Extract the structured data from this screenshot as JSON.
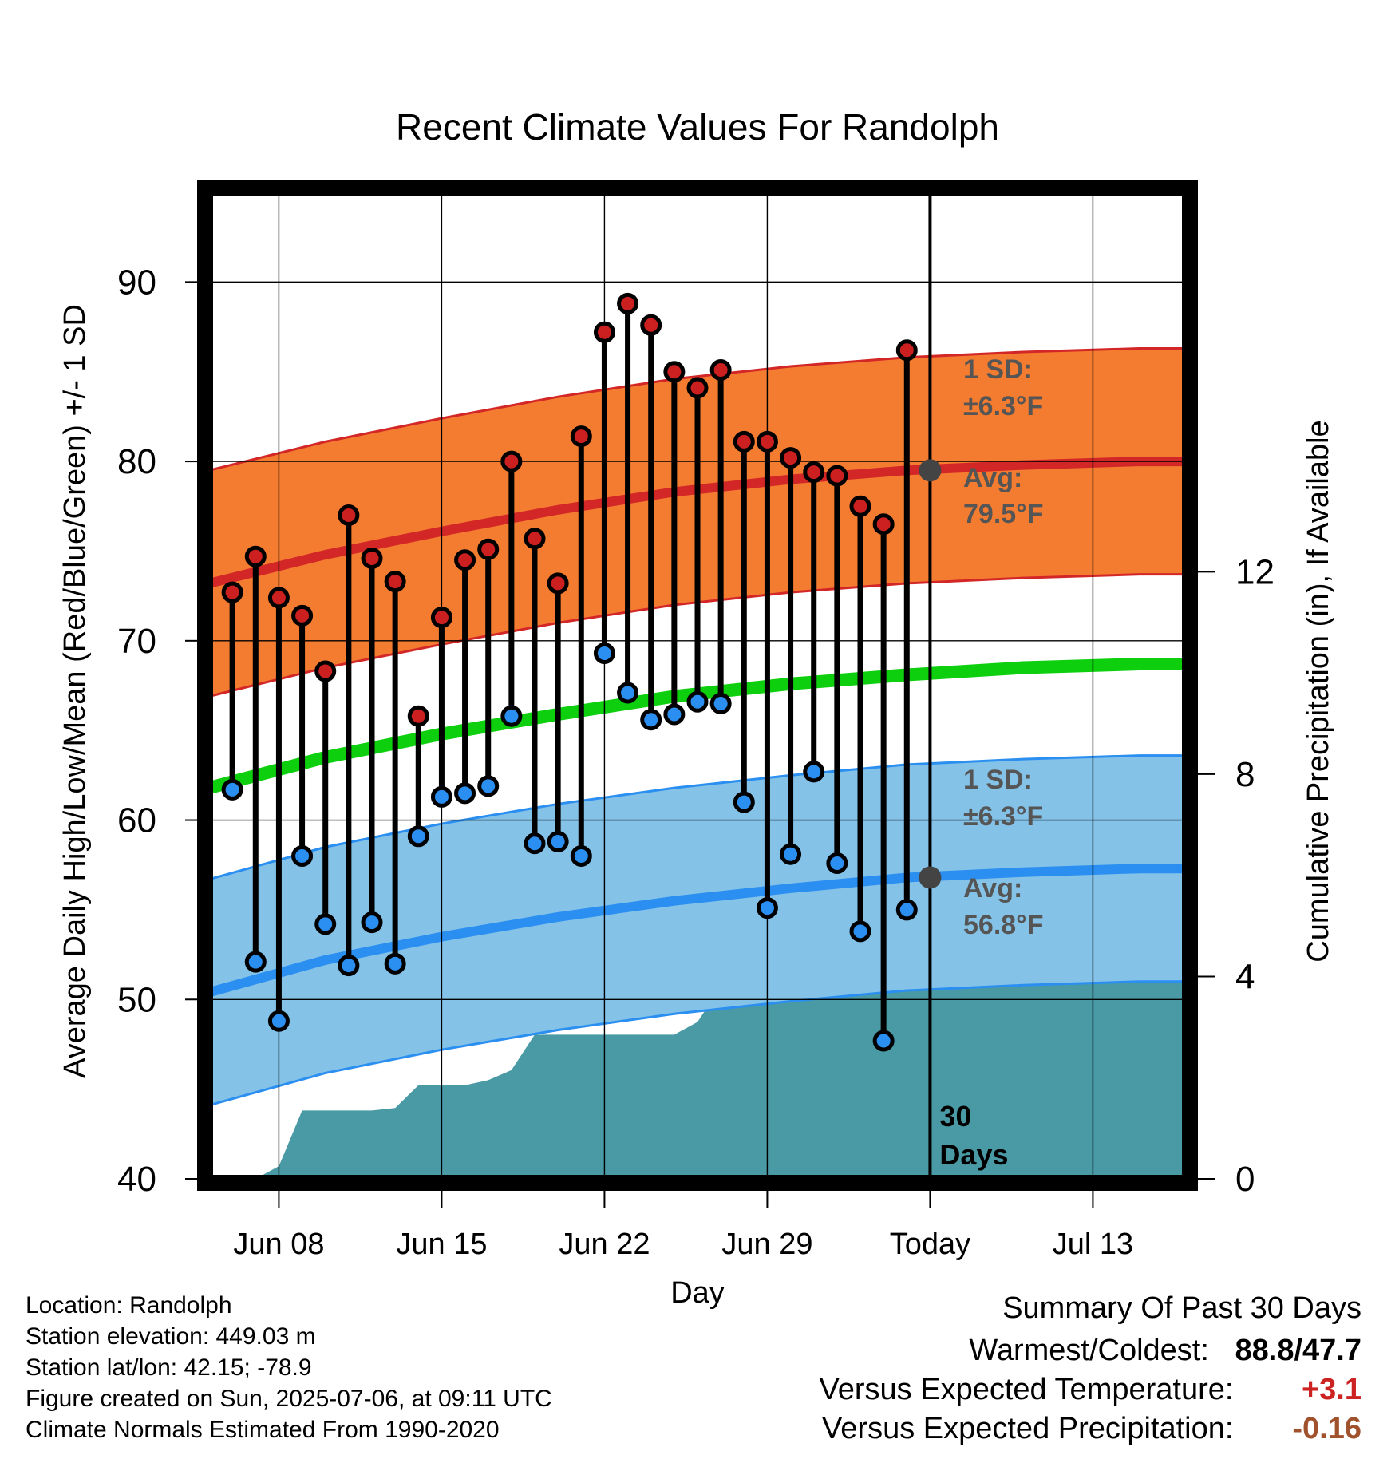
{
  "chart_data": {
    "type": "line",
    "title": "Recent Climate Values For Randolph",
    "xlabel": "Day",
    "ylabel": "Average Daily High/Low/Mean (Red/Blue/Green) +/- 1 SD",
    "y2label": "Cumulative Precipitation (in), If Available",
    "ylim": [
      40,
      95
    ],
    "y2lim": [
      0,
      19.5
    ],
    "yticks": [
      40,
      50,
      60,
      70,
      80,
      90
    ],
    "y2ticks": [
      0,
      4,
      8,
      12
    ],
    "xlim": [
      "2025-06-05",
      "2025-07-17"
    ],
    "xticks": [
      {
        "date": "2025-06-08",
        "label": "Jun 08"
      },
      {
        "date": "2025-06-15",
        "label": "Jun 15"
      },
      {
        "date": "2025-06-22",
        "label": "Jun 22"
      },
      {
        "date": "2025-06-29",
        "label": "Jun 29"
      },
      {
        "date": "2025-07-06",
        "label": "Today"
      },
      {
        "date": "2025-07-13",
        "label": "Jul 13"
      }
    ],
    "grid": true,
    "today": "2025-07-06",
    "today_label": "30\nDays",
    "observed": {
      "dates": [
        "2025-06-06",
        "2025-06-07",
        "2025-06-08",
        "2025-06-09",
        "2025-06-10",
        "2025-06-11",
        "2025-06-12",
        "2025-06-13",
        "2025-06-14",
        "2025-06-15",
        "2025-06-16",
        "2025-06-17",
        "2025-06-18",
        "2025-06-19",
        "2025-06-20",
        "2025-06-21",
        "2025-06-22",
        "2025-06-23",
        "2025-06-24",
        "2025-06-25",
        "2025-06-26",
        "2025-06-27",
        "2025-06-28",
        "2025-06-29",
        "2025-06-30",
        "2025-07-01",
        "2025-07-02",
        "2025-07-03",
        "2025-07-04",
        "2025-07-05"
      ],
      "highs": [
        72.7,
        74.7,
        72.4,
        71.4,
        68.3,
        77.0,
        74.6,
        73.3,
        65.8,
        71.3,
        74.5,
        75.1,
        80.0,
        75.7,
        73.2,
        81.4,
        87.2,
        88.8,
        87.6,
        85.0,
        84.1,
        85.1,
        81.1,
        81.1,
        80.2,
        79.4,
        79.2,
        77.5,
        76.5,
        86.2
      ],
      "lows": [
        61.7,
        52.1,
        48.8,
        58.0,
        54.2,
        51.9,
        54.3,
        52.0,
        59.1,
        61.3,
        61.5,
        61.9,
        65.8,
        58.7,
        58.8,
        58.0,
        69.3,
        67.1,
        65.6,
        65.9,
        66.6,
        66.5,
        61.0,
        55.1,
        58.1,
        62.7,
        57.6,
        53.8,
        47.7,
        55.0
      ]
    },
    "normals": {
      "dates": [
        "2025-06-05",
        "2025-06-10",
        "2025-06-15",
        "2025-06-20",
        "2025-06-25",
        "2025-06-30",
        "2025-07-05",
        "2025-07-10",
        "2025-07-15",
        "2025-07-17"
      ],
      "high_avg": [
        73.2,
        74.8,
        76.1,
        77.3,
        78.3,
        79.0,
        79.5,
        79.8,
        80.0,
        80.0
      ],
      "low_avg": [
        50.4,
        52.2,
        53.5,
        54.6,
        55.5,
        56.2,
        56.8,
        57.1,
        57.3,
        57.3
      ],
      "mean_avg": [
        61.8,
        63.5,
        64.8,
        65.9,
        66.9,
        67.6,
        68.1,
        68.5,
        68.7,
        68.7
      ],
      "sd": 6.3
    },
    "precipitation": {
      "dates": [
        "2025-06-07",
        "2025-06-08",
        "2025-06-09",
        "2025-06-10",
        "2025-06-11",
        "2025-06-12",
        "2025-06-13",
        "2025-06-14",
        "2025-06-15",
        "2025-06-16",
        "2025-06-17",
        "2025-06-18",
        "2025-06-19",
        "2025-06-20",
        "2025-06-21",
        "2025-06-22",
        "2025-06-23",
        "2025-06-24",
        "2025-06-25",
        "2025-06-26",
        "2025-06-27",
        "2025-06-28",
        "2025-06-29",
        "2025-06-30",
        "2025-07-01",
        "2025-07-02",
        "2025-07-03",
        "2025-07-04",
        "2025-07-05",
        "2025-07-17"
      ],
      "cumulative": [
        0.0,
        0.25,
        1.35,
        1.35,
        1.35,
        1.35,
        1.4,
        1.85,
        1.85,
        1.85,
        1.95,
        2.15,
        2.85,
        2.85,
        2.85,
        2.85,
        2.85,
        2.85,
        2.85,
        3.1,
        3.8,
        3.8,
        3.8,
        3.95,
        3.95,
        3.95,
        3.96,
        3.96,
        3.96,
        3.96
      ]
    },
    "annotations": {
      "high_sd_label": "1 SD:",
      "high_sd_value": "±6.3°F",
      "high_avg_label": "Avg:",
      "high_avg_value": "79.5°F",
      "low_sd_label": "1 SD:",
      "low_sd_value": "±6.3°F",
      "low_avg_label": "Avg:",
      "low_avg_value": "56.8°F"
    },
    "colors": {
      "high_band": "#f47c30",
      "high_line": "#d32727",
      "low_band": "#84c2e8",
      "low_line": "#2a8ff0",
      "mean_line": "#0dcf0d",
      "precip": "#4a9aa6",
      "high_dot": "#cc2020",
      "low_dot": "#2a8ff0",
      "annotation": "#555555"
    }
  },
  "info": {
    "location": "Location: Randolph",
    "elevation": "Station elevation: 449.03 m",
    "latlon": "Station lat/lon: 42.15; -78.9",
    "created": "Figure created on Sun, 2025-07-06, at 09:11 UTC",
    "normals": "Climate Normals Estimated From 1990-2020"
  },
  "summary": {
    "heading": "Summary Of Past 30 Days",
    "warmest_coldest_label": "Warmest/Coldest:",
    "warmest": "88.8",
    "separator": "/",
    "coldest": "47.7",
    "temp_label": "Versus Expected Temperature:",
    "temp_value": "+3.1",
    "temp_color": "#cc2222",
    "precip_label": "Versus Expected Precipitation:",
    "precip_value": "-0.16",
    "precip_color": "#a0522d"
  }
}
